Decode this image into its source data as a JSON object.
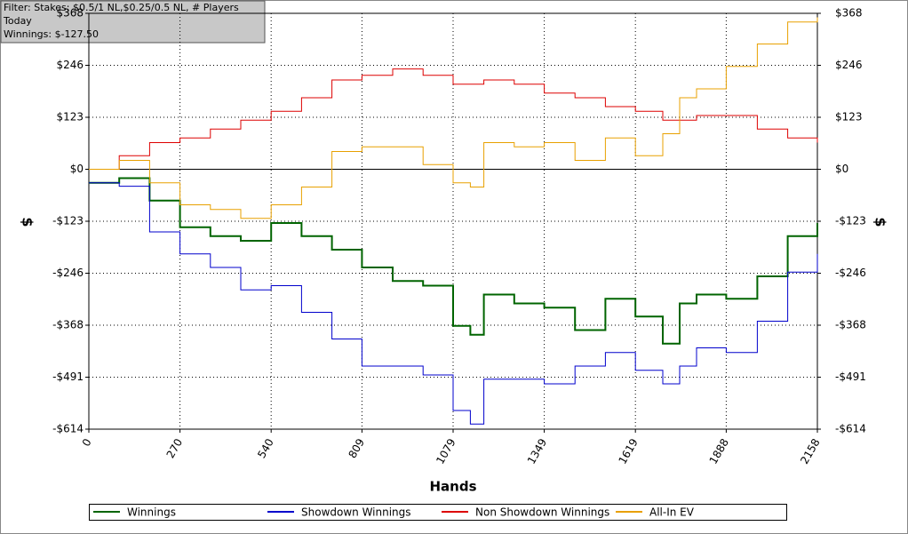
{
  "filter_box": {
    "lines": [
      "Filter: Stakes: $0.5/1 NL,$0.25/0.5 NL, # Players",
      "Today",
      "Winnings: $-127.50"
    ]
  },
  "chart_data": {
    "type": "line",
    "x_label": "Hands",
    "y_label": "$",
    "y2_label": "$",
    "x": [
      0,
      90,
      180,
      270,
      360,
      450,
      540,
      630,
      720,
      809,
      900,
      990,
      1079,
      1130,
      1170,
      1260,
      1349,
      1440,
      1530,
      1619,
      1700,
      1750,
      1800,
      1888,
      1980,
      2070,
      2158
    ],
    "xlim": [
      0,
      2158
    ],
    "xticks": [
      0,
      270,
      540,
      809,
      1079,
      1349,
      1619,
      1888,
      2158
    ],
    "ylim": [
      -614,
      368.4
    ],
    "yticks": [
      {
        "value": -614,
        "label": "-$614"
      },
      {
        "value": -491.2,
        "label": "-$491"
      },
      {
        "value": -368.4,
        "label": "-$368"
      },
      {
        "value": -245.6,
        "label": "-$246"
      },
      {
        "value": -122.8,
        "label": "-$123"
      },
      {
        "value": 0,
        "label": "$0"
      },
      {
        "value": 122.8,
        "label": "$123"
      },
      {
        "value": 245.6,
        "label": "$246"
      },
      {
        "value": 368.4,
        "label": "$368"
      }
    ],
    "y2lim": [
      -614,
      368.4
    ],
    "y2ticks": [
      {
        "value": -614,
        "label": "-$614"
      },
      {
        "value": -491.2,
        "label": "-$491"
      },
      {
        "value": -368.4,
        "label": "-$368"
      },
      {
        "value": -245.6,
        "label": "-$246"
      },
      {
        "value": -122.8,
        "label": "-$123"
      },
      {
        "value": 0,
        "label": "$0"
      },
      {
        "value": 122.8,
        "label": "$123"
      },
      {
        "value": 245.6,
        "label": "$246"
      },
      {
        "value": 368.4,
        "label": "$368"
      }
    ],
    "grid": true,
    "series": [
      {
        "name": "Winnings",
        "color": "#006400",
        "values": [
          -32,
          -21,
          -74,
          -137,
          -158,
          -169,
          -127,
          -158,
          -190,
          -232,
          -264,
          -275,
          -370,
          -391,
          -296,
          -317,
          -327,
          -380,
          -306,
          -348,
          -412,
          -317,
          -296,
          -306,
          -253,
          -158,
          -127
        ]
      },
      {
        "name": "Showdown Winnings",
        "color": "#0000cc",
        "values": [
          -32,
          -40,
          -148,
          -200,
          -232,
          -285,
          -275,
          -338,
          -401,
          -465,
          -465,
          -486,
          -570,
          -602,
          -496,
          -496,
          -507,
          -465,
          -433,
          -475,
          -507,
          -465,
          -422,
          -433,
          -359,
          -243,
          -200
        ]
      },
      {
        "name": "Non Showdown Winnings",
        "color": "#dd0000",
        "values": [
          0,
          32,
          63,
          74,
          95,
          116,
          137,
          169,
          211,
          222,
          237,
          222,
          201,
          201,
          211,
          201,
          180,
          169,
          148,
          137,
          116,
          116,
          127,
          127,
          95,
          74,
          63
        ]
      },
      {
        "name": "All-In EV",
        "color": "#e8a000",
        "values": [
          0,
          21,
          -32,
          -84,
          -95,
          -116,
          -84,
          -42,
          42,
          53,
          53,
          11,
          -32,
          -42,
          63,
          53,
          63,
          21,
          74,
          32,
          84,
          169,
          190,
          243,
          296,
          348,
          359
        ]
      }
    ]
  }
}
